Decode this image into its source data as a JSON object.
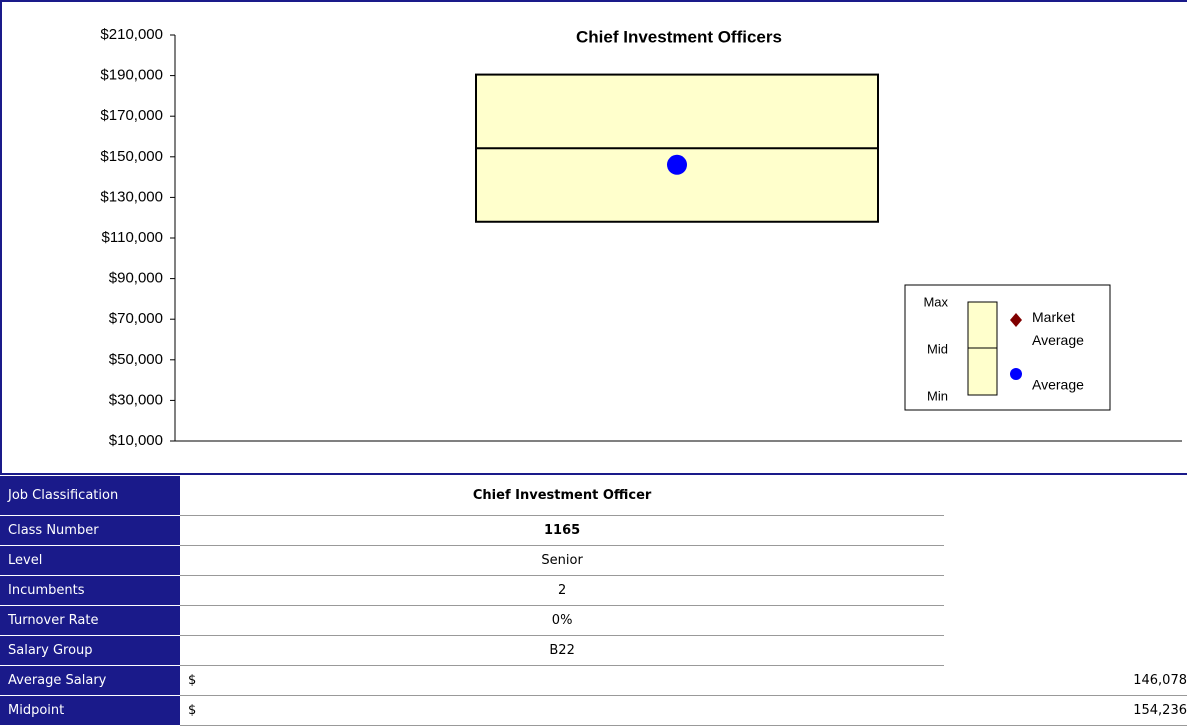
{
  "chart_data": {
    "type": "box",
    "title": "Chief Investment Officers",
    "ylim": [
      10000,
      210000
    ],
    "yticks": [
      {
        "value": 10000,
        "label": "$10,000"
      },
      {
        "value": 30000,
        "label": "$30,000"
      },
      {
        "value": 50000,
        "label": "$50,000"
      },
      {
        "value": 70000,
        "label": "$70,000"
      },
      {
        "value": 90000,
        "label": "$90,000"
      },
      {
        "value": 110000,
        "label": "$110,000"
      },
      {
        "value": 130000,
        "label": "$130,000"
      },
      {
        "value": 150000,
        "label": "$150,000"
      },
      {
        "value": 170000,
        "label": "$170,000"
      },
      {
        "value": 190000,
        "label": "$190,000"
      },
      {
        "value": 210000,
        "label": "$210,000"
      }
    ],
    "box": {
      "min": 118000,
      "mid": 154236,
      "max": 190500,
      "color": "#ffffcc"
    },
    "average": {
      "name": "Average",
      "value": 146078,
      "color": "#0000ff"
    },
    "market_average": {
      "name": "Market Average",
      "color": "#800000"
    },
    "legend_box_labels": [
      "Max",
      "Mid",
      "Min"
    ]
  },
  "table": {
    "rows": [
      [
        "Job Classification",
        "Chief Investment Officer"
      ],
      [
        "Class Number",
        "1165"
      ],
      [
        "Level",
        "Senior"
      ],
      [
        "Incumbents",
        "2"
      ],
      [
        "Turnover Rate",
        "0%"
      ],
      [
        "Salary Group",
        "B22"
      ],
      [
        "Average Salary",
        "$",
        "146,078"
      ],
      [
        "Midpoint",
        "$",
        "154,236"
      ]
    ]
  }
}
